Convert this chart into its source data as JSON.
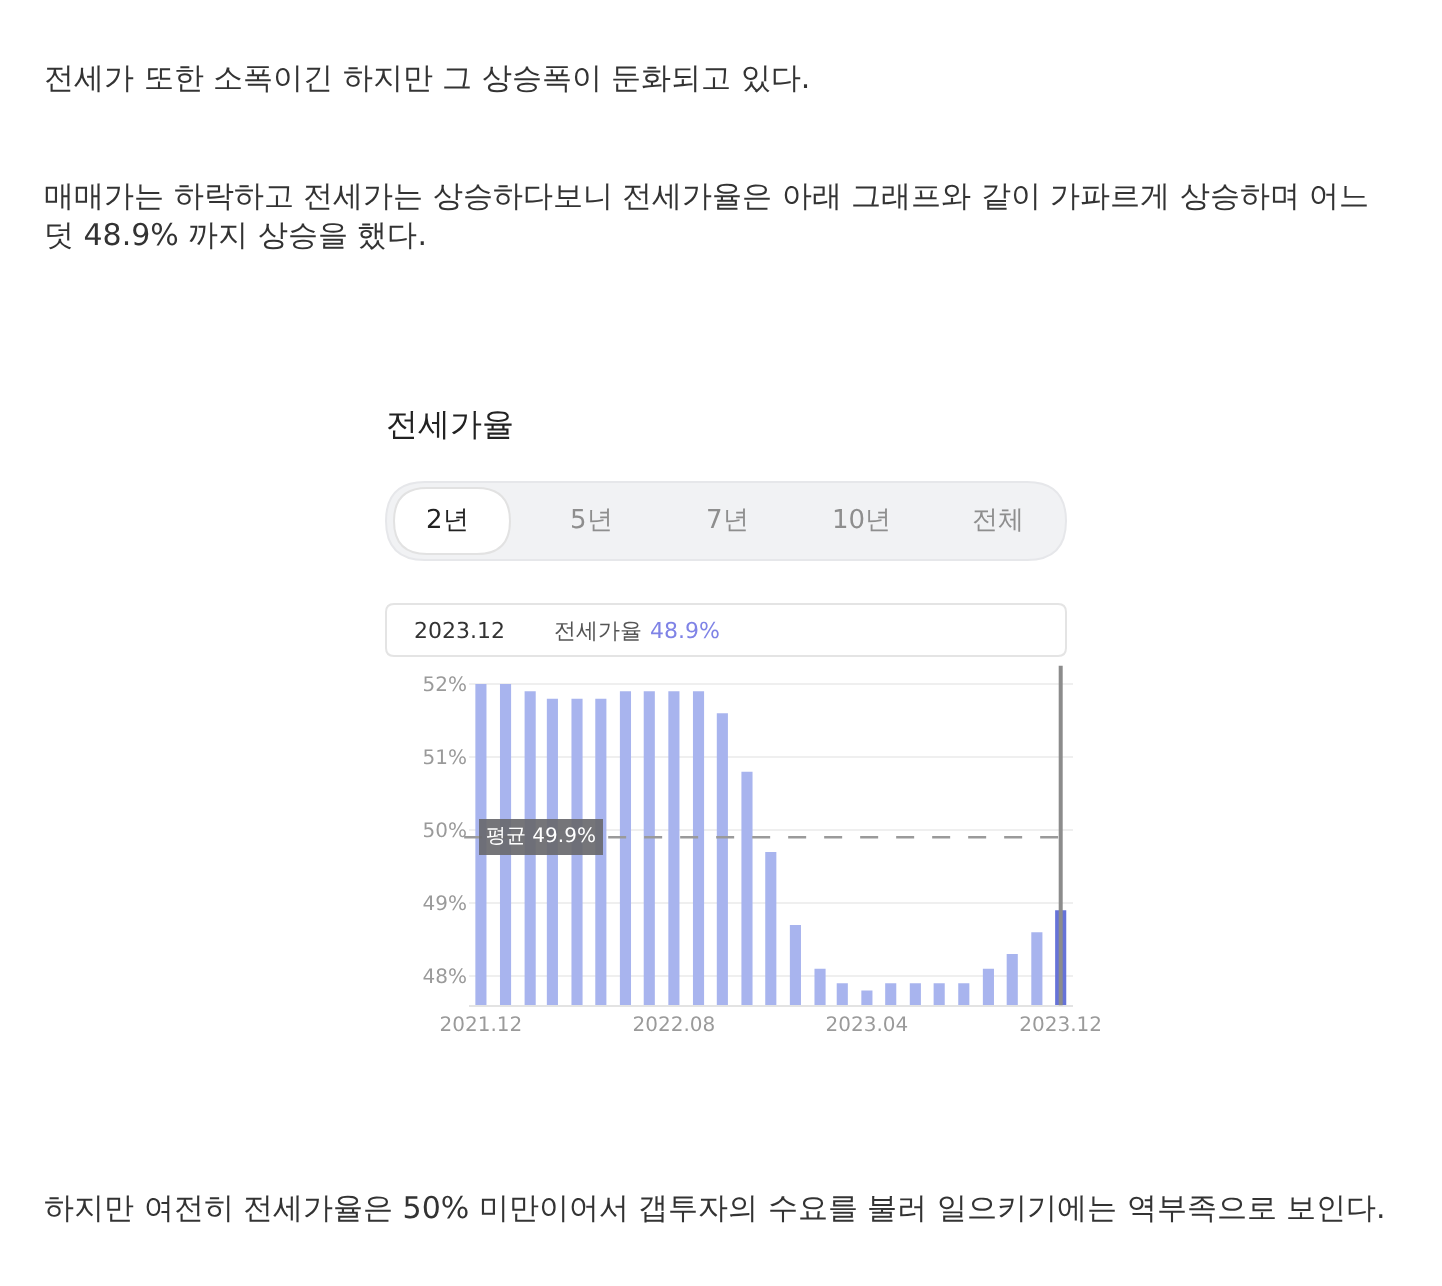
{
  "chart_data": {
    "type": "bar",
    "title": "전세가율",
    "x": [
      "2021-12",
      "2022-01",
      "2022-02",
      "2022-03",
      "2022-04",
      "2022-05",
      "2022-06",
      "2022-07",
      "2022-08",
      "2022-09",
      "2022-10",
      "2022-11",
      "2022-12",
      "2023-01",
      "2023-02",
      "2023-03",
      "2023-04",
      "2023-05",
      "2023-06",
      "2023-07",
      "2023-08",
      "2023-09",
      "2023-10",
      "2023-11",
      "2023-12"
    ],
    "values": [
      52.0,
      52.0,
      51.9,
      51.8,
      51.8,
      51.8,
      51.9,
      51.9,
      51.9,
      51.9,
      51.6,
      50.8,
      49.7,
      48.7,
      48.1,
      47.9,
      47.8,
      47.9,
      47.9,
      47.9,
      47.9,
      48.1,
      48.3,
      48.6,
      48.9
    ],
    "colors": [
      "#a8b4ee",
      "#a8b4ee",
      "#a8b4ee",
      "#a8b4ee",
      "#a8b4ee",
      "#a8b4ee",
      "#a8b4ee",
      "#a8b4ee",
      "#a8b4ee",
      "#a8b4ee",
      "#a8b4ee",
      "#a8b4ee",
      "#a8b4ee",
      "#a8b4ee",
      "#a8b4ee",
      "#a8b4ee",
      "#a8b4ee",
      "#a8b4ee",
      "#a8b4ee",
      "#a8b4ee",
      "#a8b4ee",
      "#a8b4ee",
      "#a8b4ee",
      "#a8b4ee",
      "#6673d8"
    ],
    "xlim": [
      "2021-11-16",
      "2023-12-17"
    ],
    "xticks": [
      {
        "value": "2021-12",
        "label": "2021.12"
      },
      {
        "value": "2022-08",
        "label": "2022.08"
      },
      {
        "value": "2023-04",
        "label": "2023.04"
      },
      {
        "value": "2023-12",
        "label": "2023.12"
      }
    ],
    "ylim": [
      47.6,
      52.25
    ],
    "yticks": [
      {
        "value": 48,
        "label": "48%"
      },
      {
        "value": 49,
        "label": "49%"
      },
      {
        "value": 50,
        "label": "50%"
      },
      {
        "value": 51,
        "label": "51%"
      },
      {
        "value": 52,
        "label": "52%"
      }
    ],
    "grid": "y",
    "ref_lines": [
      {
        "axis": "y",
        "value": 49.9,
        "label": "평균 49.9%",
        "color": "#9a9a9a",
        "line_style": "dashed"
      },
      {
        "axis": "x",
        "value": "2023-12",
        "color": "#8c8c8c",
        "line_style": "solid"
      }
    ],
    "annotations": [
      "전세가 또한 소폭이긴 하지만 그 상승폭이 둔화되고 있다.",
      "매매가는 하락하고 전세가는 상승하다보니 전세가율은 아래 그래프와 같이 가파르게 상승하며 어느덧 48.9% 까지 상승을 했다.",
      "2년",
      "5년",
      "7년",
      "10년",
      "전체",
      "2023.12",
      "전세가율",
      "48.9%",
      "하지만 여전히 전세가율은 50% 미만이어서 갭투자의 수요를 불러 일으키기에는 역부족으로 보인다."
    ]
  }
}
